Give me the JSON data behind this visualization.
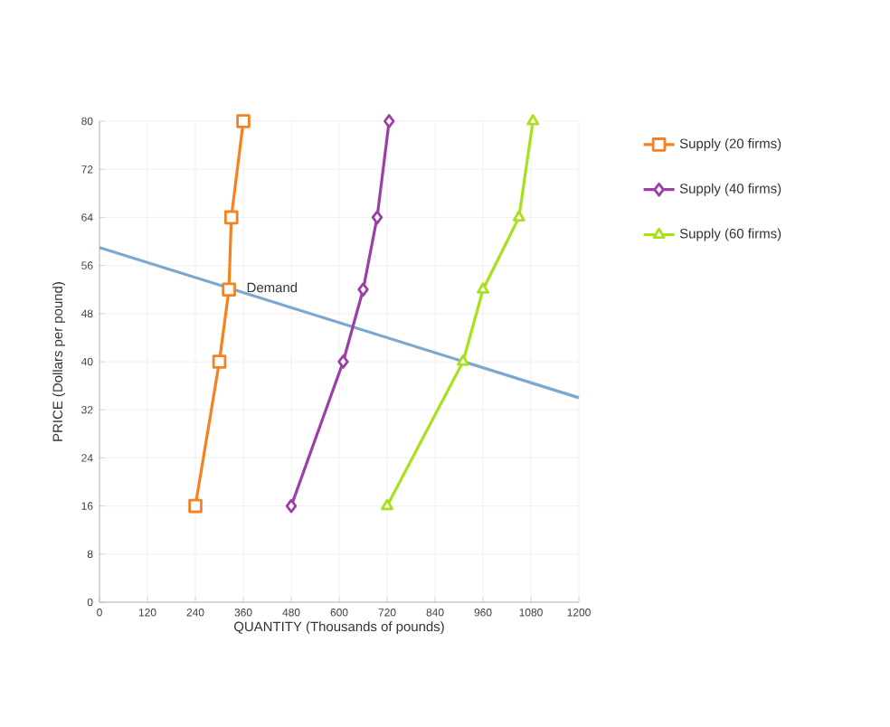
{
  "chart_data": {
    "type": "line",
    "xlabel": "QUANTITY (Thousands of pounds)",
    "ylabel": "PRICE (Dollars per pound)",
    "xlim": [
      0,
      1200
    ],
    "ylim": [
      0,
      80
    ],
    "xticks": [
      0,
      120,
      240,
      360,
      480,
      600,
      720,
      840,
      960,
      1080,
      1200
    ],
    "yticks": [
      0,
      8,
      16,
      24,
      32,
      40,
      48,
      56,
      64,
      72,
      80
    ],
    "grid": true,
    "legend": "right",
    "series": [
      {
        "name": "Demand",
        "color": "#7ba7d1",
        "marker": "none",
        "x": [
          0,
          1200
        ],
        "values": [
          59,
          34
        ]
      },
      {
        "name": "Supply (20 firms)",
        "color": "#f58220",
        "marker": "square",
        "x": [
          240,
          300,
          324,
          330,
          360
        ],
        "values": [
          16,
          40,
          52,
          64,
          80
        ]
      },
      {
        "name": "Supply (40 firms)",
        "color": "#9b3fa6",
        "marker": "diamond",
        "x": [
          480,
          610,
          660,
          695,
          725
        ],
        "values": [
          16,
          40,
          52,
          64,
          80
        ]
      },
      {
        "name": "Supply (60 firms)",
        "color": "#a8e01c",
        "marker": "triangle",
        "x": [
          720,
          910,
          960,
          1050,
          1085
        ],
        "values": [
          16,
          40,
          52,
          64,
          80
        ]
      }
    ]
  }
}
